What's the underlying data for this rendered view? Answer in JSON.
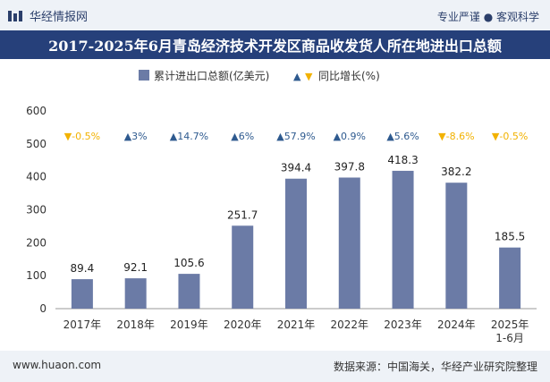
{
  "header": {
    "brand": "华经情报网",
    "tagline": "专业严谨 ● 客观科学"
  },
  "title": "2017-2025年6月青岛经济技术开发区商品收发货人所在地进出口总额",
  "legend": {
    "bar_label": "累计进出口总额(亿美元)",
    "growth_label": "同比增长(%)"
  },
  "colors": {
    "bar": "#6b7ba6",
    "up": "#2e5a8f",
    "down": "#f2b200",
    "header_bg": "#26407a"
  },
  "chart_data": {
    "type": "bar",
    "title": "2017-2025年6月青岛经济技术开发区商品收发货人所在地进出口总额",
    "categories": [
      "2017年",
      "2018年",
      "2019年",
      "2020年",
      "2021年",
      "2022年",
      "2023年",
      "2024年",
      "2025年\n1-6月"
    ],
    "series": [
      {
        "name": "累计进出口总额(亿美元)",
        "values": [
          89.4,
          92.1,
          105.6,
          251.7,
          394.4,
          397.8,
          418.3,
          382.2,
          185.5
        ]
      }
    ],
    "growth": [
      {
        "dir": "down",
        "text": "-0.5%"
      },
      {
        "dir": "up",
        "text": "3%"
      },
      {
        "dir": "up",
        "text": "14.7%"
      },
      {
        "dir": "up",
        "text": "6%"
      },
      {
        "dir": "up",
        "text": "57.9%"
      },
      {
        "dir": "up",
        "text": "0.9%"
      },
      {
        "dir": "up",
        "text": "5.6%"
      },
      {
        "dir": "down",
        "text": "-8.6%"
      },
      {
        "dir": "down",
        "text": "-0.5%"
      }
    ],
    "yticks": [
      0,
      100,
      200,
      300,
      400,
      500,
      600
    ],
    "ylim": [
      0,
      600
    ],
    "xlabel": "",
    "ylabel": ""
  },
  "footer": {
    "site": "www.huaon.com",
    "source": "数据来源：中国海关，华经产业研究院整理"
  }
}
